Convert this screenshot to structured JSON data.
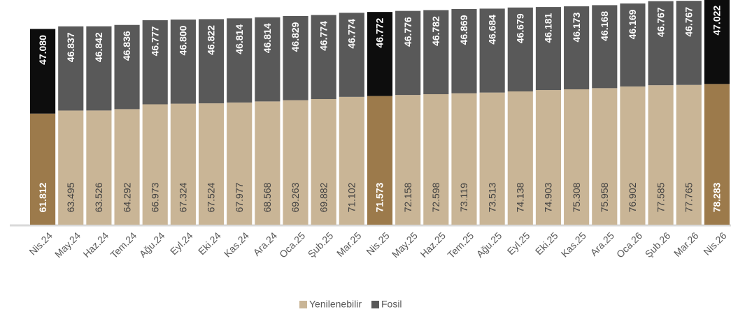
{
  "chart_data": {
    "type": "stacked_bar",
    "categories": [
      "Nis.24",
      "May.24",
      "Haz.24",
      "Tem.24",
      "Ağu.24",
      "Eyl.24",
      "Eki.24",
      "Kas.24",
      "Ara.24",
      "Oca.25",
      "Şub.25",
      "Mar.25",
      "Nis.25",
      "May.25",
      "Haz.25",
      "Tem.25",
      "Ağu.25",
      "Eyl.25",
      "Eki.25",
      "Kas.25",
      "Ara.25",
      "Oca.26",
      "Şub.26",
      "Mar.26",
      "Nis.26"
    ],
    "ylim": [
      0,
      125000
    ],
    "legend": "bottom",
    "series": [
      {
        "name": "Yenilenebilir",
        "color": "#c9b596",
        "colors": [
          "#9c7a4b",
          "#c9b596",
          "#c9b596",
          "#c9b596",
          "#c9b596",
          "#c9b596",
          "#c9b596",
          "#c9b596",
          "#c9b596",
          "#c9b596",
          "#c9b596",
          "#c9b596",
          "#9c7a4b",
          "#c9b596",
          "#c9b596",
          "#c9b596",
          "#c9b596",
          "#c9b596",
          "#c9b596",
          "#c9b596",
          "#c9b596",
          "#c9b596",
          "#c9b596",
          "#c9b596",
          "#9c7a4b"
        ],
        "values": [
          61812,
          63495,
          63526,
          64292,
          66973,
          67324,
          67524,
          67977,
          68568,
          69263,
          69882,
          71102,
          71573,
          72158,
          72598,
          73119,
          73513,
          74138,
          74903,
          75308,
          75958,
          76902,
          77585,
          77765,
          78283
        ],
        "value_labels": [
          "61.812",
          "63.495",
          "63.526",
          "64.292",
          "66.973",
          "67.324",
          "67.524",
          "67.977",
          "68.568",
          "69.263",
          "69.882",
          "71.102",
          "71.573",
          "72.158",
          "72.598",
          "73.119",
          "73.513",
          "74.138",
          "74.903",
          "75.308",
          "75.958",
          "76.902",
          "77.585",
          "77.765",
          "78.283"
        ]
      },
      {
        "name": "Fosil",
        "color": "#595959",
        "colors": [
          "#0d0d0d",
          "#595959",
          "#595959",
          "#595959",
          "#595959",
          "#595959",
          "#595959",
          "#595959",
          "#595959",
          "#595959",
          "#595959",
          "#595959",
          "#0d0d0d",
          "#595959",
          "#595959",
          "#595959",
          "#595959",
          "#595959",
          "#595959",
          "#595959",
          "#595959",
          "#595959",
          "#595959",
          "#595959",
          "#0d0d0d"
        ],
        "values": [
          47080,
          46837,
          46842,
          46836,
          46777,
          46800,
          46822,
          46814,
          46814,
          46829,
          46774,
          46774,
          46772,
          46776,
          46782,
          46869,
          46684,
          46679,
          46181,
          46173,
          46168,
          46169,
          46767,
          46767,
          47022
        ],
        "value_labels": [
          "47.080",
          "46.837",
          "46.842",
          "46.836",
          "46.777",
          "46.800",
          "46.822",
          "46.814",
          "46.814",
          "46.829",
          "46.774",
          "46.774",
          "46.772",
          "46.776",
          "46.782",
          "46.869",
          "46.684",
          "46.679",
          "46.181",
          "46.173",
          "46.168",
          "46.169",
          "46.767",
          "46.767",
          "47.022"
        ]
      }
    ]
  }
}
